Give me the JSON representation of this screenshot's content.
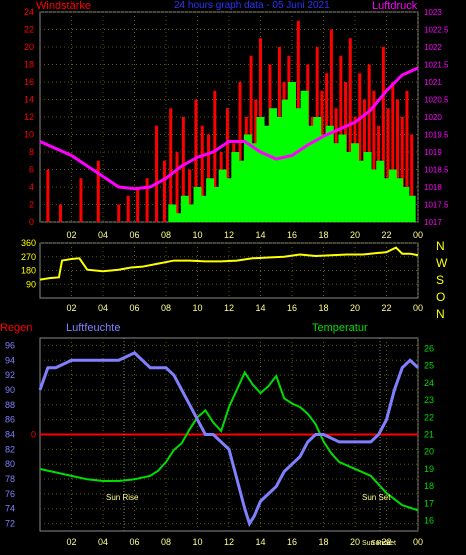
{
  "header": {
    "wind_title": "Windstärke",
    "graph_title": "24 hours graph data - 05 Juni 2021",
    "pressure_title": "Luftdruck"
  },
  "compass": [
    "N",
    "W",
    "S",
    "O",
    "N"
  ],
  "lower_header": {
    "rain": "Regen",
    "humidity": "Luftfeuchte",
    "temperature": "Temperatur"
  },
  "markers": {
    "sunrise": "Sun Rise",
    "sunset": "Sun Set"
  },
  "colors": {
    "wind_gust": "#ff0000",
    "wind_avg": "#00ff00",
    "pressure": "#ff00ff",
    "direction": "#ffff00",
    "humidity": "#8080ff",
    "temperature": "#00dd00",
    "rain": "#ff0000",
    "axis_left": "#ff0000",
    "axis_right": "#ff00ff",
    "grid": "#5a5a00"
  },
  "chart_data": [
    {
      "type": "bar",
      "title": "24 hours graph data - 05 Juni 2021",
      "x_ticks": [
        "02",
        "04",
        "06",
        "08",
        "10",
        "12",
        "14",
        "16",
        "18",
        "20",
        "22",
        "00"
      ],
      "y_left_label": "Windstärke",
      "y_left_ticks": [
        0,
        2,
        4,
        6,
        8,
        10,
        12,
        14,
        16,
        18,
        20,
        22,
        24
      ],
      "y_left_lim": [
        0,
        24
      ],
      "y_right_label": "Luftdruck",
      "y_right_ticks": [
        1017,
        1017.5,
        1018,
        1018.5,
        1019,
        1019.5,
        1020,
        1020.5,
        1021,
        1021.5,
        1022,
        1022.5,
        1023
      ],
      "y_right_lim": [
        1017,
        1023
      ],
      "grid": true,
      "series": [
        {
          "name": "wind_gust",
          "style": "bars",
          "x": [
            0.5,
            1.3,
            2.6,
            3.7,
            5.0,
            5.6,
            6.2,
            6.8,
            7.4,
            7.9,
            8.3,
            8.7,
            9.1,
            9.5,
            9.9,
            10.3,
            10.7,
            11.1,
            11.5,
            11.9,
            12.3,
            12.7,
            13.1,
            13.4,
            13.7,
            14.0,
            14.3,
            14.6,
            14.9,
            15.2,
            15.5,
            15.8,
            16.1,
            16.4,
            16.7,
            17.0,
            17.3,
            17.6,
            17.9,
            18.2,
            18.5,
            18.8,
            19.1,
            19.4,
            19.7,
            20.0,
            20.3,
            20.6,
            20.9,
            21.2,
            21.5,
            21.8,
            22.1,
            22.4,
            22.7,
            23.0,
            23.3,
            23.6
          ],
          "values": [
            6,
            2,
            5,
            7,
            2,
            3,
            4,
            5,
            11,
            7,
            13,
            8,
            12,
            6,
            14,
            11,
            10,
            15,
            8,
            13,
            9,
            16,
            12,
            19,
            14,
            21,
            10,
            18,
            13,
            20,
            16,
            19,
            11,
            23,
            14,
            18,
            12,
            20,
            15,
            17,
            22,
            13,
            19,
            16,
            21,
            12,
            17,
            14,
            18,
            15,
            11,
            20,
            13,
            16,
            14,
            12,
            15,
            10
          ]
        },
        {
          "name": "wind_avg",
          "style": "bars",
          "x": [
            8.4,
            8.8,
            9.2,
            9.6,
            10.0,
            10.4,
            10.8,
            11.2,
            11.6,
            12.0,
            12.4,
            12.8,
            13.2,
            13.6,
            14.0,
            14.4,
            14.8,
            15.2,
            15.6,
            16.0,
            16.4,
            16.8,
            17.2,
            17.6,
            18.0,
            18.4,
            18.8,
            19.2,
            19.6,
            20.0,
            20.4,
            20.8,
            21.2,
            21.6,
            22.0,
            22.4,
            22.8,
            23.2,
            23.6
          ],
          "values": [
            2,
            1,
            3,
            2,
            4,
            3,
            5,
            4,
            6,
            5,
            8,
            7,
            10,
            9,
            12,
            11,
            13,
            12,
            14,
            16,
            13,
            15,
            11,
            12,
            10,
            11,
            9,
            10,
            8,
            9,
            7,
            8,
            6,
            7,
            5,
            6,
            5,
            4,
            3
          ]
        },
        {
          "name": "pressure",
          "style": "line",
          "axis": "right",
          "x": [
            0,
            1,
            2,
            3,
            4,
            5,
            6,
            7,
            8,
            9,
            10,
            11,
            12,
            13,
            14,
            15,
            16,
            17,
            18,
            19,
            20,
            21,
            22,
            23,
            24
          ],
          "values": [
            1019.3,
            1019.1,
            1018.9,
            1018.6,
            1018.3,
            1018.0,
            1017.95,
            1018.0,
            1018.25,
            1018.6,
            1018.85,
            1019.0,
            1019.3,
            1019.3,
            1019.0,
            1018.8,
            1018.9,
            1019.2,
            1019.45,
            1019.65,
            1019.85,
            1020.2,
            1020.75,
            1021.2,
            1021.4
          ]
        }
      ]
    },
    {
      "type": "line",
      "x_ticks": [
        "02",
        "04",
        "06",
        "08",
        "10",
        "12",
        "14",
        "16",
        "18",
        "20",
        "22",
        "00"
      ],
      "y_ticks": [
        90,
        180,
        270,
        360
      ],
      "ylim": [
        0,
        360
      ],
      "grid": true,
      "series": [
        {
          "name": "direction",
          "x": [
            0,
            0.6,
            1.2,
            1.4,
            2.0,
            2.5,
            3.0,
            4.0,
            5.0,
            5.8,
            6.5,
            7.5,
            8.5,
            9.5,
            10.5,
            11.5,
            12.5,
            13.5,
            14.5,
            15.5,
            16.5,
            17.5,
            18.5,
            19.5,
            20.5,
            21.5,
            22.0,
            22.6,
            23.0,
            23.5,
            24.0
          ],
          "values": [
            120,
            130,
            135,
            245,
            255,
            260,
            185,
            175,
            185,
            200,
            205,
            225,
            245,
            245,
            240,
            240,
            245,
            260,
            265,
            270,
            285,
            275,
            280,
            285,
            285,
            295,
            300,
            330,
            290,
            290,
            280
          ]
        }
      ]
    },
    {
      "type": "line",
      "x_ticks": [
        "02",
        "04",
        "06",
        "08",
        "10",
        "12",
        "14",
        "16",
        "18",
        "20",
        "22",
        "00"
      ],
      "y_left_label": "Luftfeuchte",
      "y_left_ticks": [
        72,
        74,
        76,
        78,
        80,
        82,
        84,
        86,
        88,
        90,
        92,
        94,
        96
      ],
      "y_left_lim": [
        71,
        97
      ],
      "y_right_label": "Temperatur",
      "y_right_ticks": [
        16,
        17,
        18,
        19,
        20,
        21,
        22,
        23,
        24,
        25,
        26
      ],
      "y_right_lim": [
        15.4,
        26.6
      ],
      "rain_axis_label": "Regen",
      "rain_axis_tick": "0",
      "grid": true,
      "series": [
        {
          "name": "humidity",
          "axis": "left",
          "x": [
            0,
            0.5,
            1.0,
            2.0,
            3.0,
            4.0,
            5.0,
            6.0,
            7.0,
            8.0,
            8.5,
            9.0,
            9.5,
            10.0,
            10.5,
            11.0,
            11.5,
            12.0,
            12.5,
            13.0,
            13.3,
            13.6,
            14.0,
            14.5,
            15.0,
            15.5,
            16.0,
            16.5,
            17.0,
            17.5,
            18.0,
            19.0,
            20.0,
            21.0,
            21.5,
            22.0,
            22.5,
            23.0,
            23.5,
            24.0
          ],
          "values": [
            90,
            93,
            93,
            94,
            94,
            94,
            94,
            95,
            93,
            93,
            92,
            90,
            88,
            86,
            84,
            84,
            83,
            82,
            78,
            74,
            72,
            73,
            75,
            76,
            77,
            79,
            80,
            81,
            83,
            84,
            84,
            83,
            83,
            83,
            84,
            86,
            90,
            93,
            94,
            93
          ]
        },
        {
          "name": "temperature",
          "axis": "right",
          "x": [
            0,
            1,
            2,
            3,
            4,
            5,
            6,
            7,
            7.5,
            8,
            8.5,
            9,
            9.5,
            10,
            10.5,
            11,
            11.5,
            12,
            12.5,
            13,
            13.5,
            14,
            14.5,
            15,
            15.5,
            16,
            16.5,
            17,
            17.5,
            18,
            18.5,
            19,
            20,
            21,
            22,
            23,
            24
          ],
          "values": [
            19.0,
            18.8,
            18.6,
            18.4,
            18.3,
            18.3,
            18.4,
            18.6,
            18.9,
            19.4,
            20.1,
            20.5,
            21.3,
            22.0,
            22.4,
            21.7,
            21.2,
            22.6,
            23.6,
            24.6,
            23.9,
            23.4,
            23.8,
            24.4,
            23.1,
            22.8,
            22.6,
            22.2,
            21.6,
            20.6,
            19.9,
            19.4,
            19.0,
            18.6,
            17.6,
            16.9,
            16.6
          ]
        },
        {
          "name": "rain",
          "axis": "rain",
          "x": [
            0,
            24
          ],
          "values": [
            0,
            0
          ]
        }
      ]
    }
  ],
  "x_axis_extra": {
    "sunrise_label": "Sun Rise",
    "sunset_label": "Sun Set"
  }
}
